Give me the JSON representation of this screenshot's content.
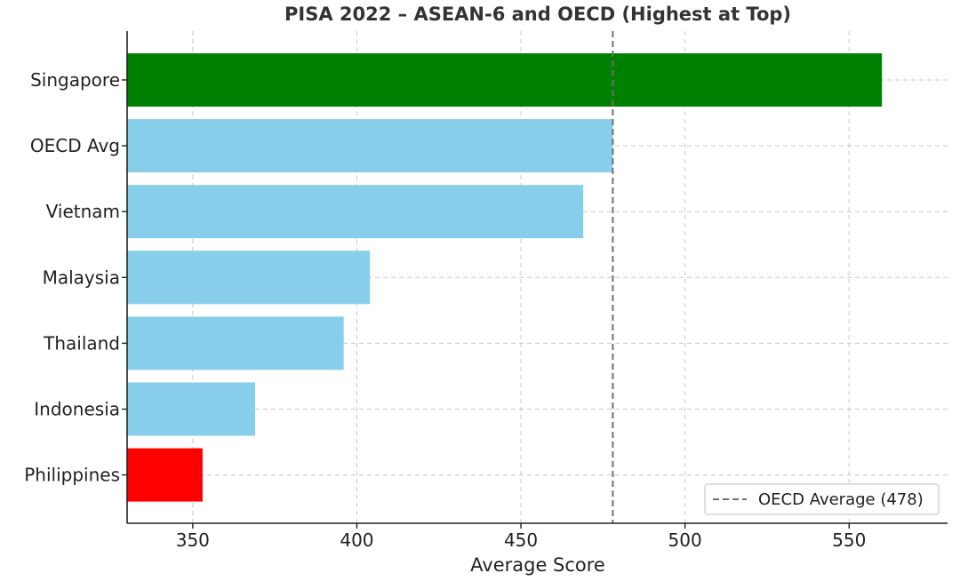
{
  "chart_data": {
    "type": "bar",
    "orientation": "horizontal",
    "title": "PISA 2022 – ASEAN-6 and OECD (Highest at Top)",
    "xlabel": "Average Score",
    "ylabel": "",
    "xlim": [
      330,
      580
    ],
    "xticks": [
      350,
      400,
      450,
      500,
      550
    ],
    "grid": true,
    "categories": [
      "Singapore",
      "OECD Avg",
      "Vietnam",
      "Malaysia",
      "Thailand",
      "Indonesia",
      "Philippines"
    ],
    "values": [
      560,
      478,
      469,
      404,
      396,
      369,
      353
    ],
    "colors": [
      "#008000",
      "#87ceeb",
      "#87ceeb",
      "#87ceeb",
      "#87ceeb",
      "#87ceeb",
      "#ff0000"
    ],
    "reference_line": {
      "value": 478,
      "color": "#707070",
      "style": "dashed",
      "label": "OECD Average (478)"
    },
    "legend": {
      "placement": "bottom-right",
      "entries": [
        "OECD Average (478)"
      ]
    }
  }
}
